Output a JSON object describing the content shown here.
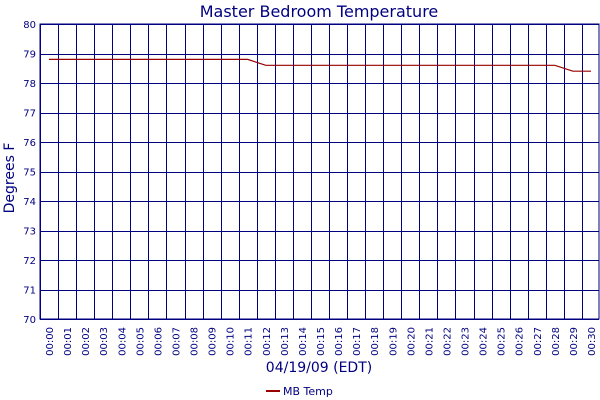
{
  "chart_data": {
    "type": "line",
    "title": "Master Bedroom Temperature",
    "xlabel": "04/19/09 (EDT)",
    "ylabel": "Degrees F",
    "ylim": [
      70,
      80
    ],
    "yticks": [
      "70",
      "71",
      "72",
      "73",
      "74",
      "75",
      "76",
      "77",
      "78",
      "79",
      "80"
    ],
    "x": [
      "00:00",
      "00:01",
      "00:02",
      "00:03",
      "00:04",
      "00:05",
      "00:06",
      "00:07",
      "00:08",
      "00:09",
      "00:10",
      "00:11",
      "00:12",
      "00:13",
      "00:14",
      "00:15",
      "00:16",
      "00:17",
      "00:18",
      "00:19",
      "00:20",
      "00:21",
      "00:22",
      "00:23",
      "00:24",
      "00:25",
      "00:26",
      "00:27",
      "00:28",
      "00:29",
      "00:30"
    ],
    "series": [
      {
        "name": "MB Temp",
        "color": "#990000",
        "values": [
          78.8,
          78.8,
          78.8,
          78.8,
          78.8,
          78.8,
          78.8,
          78.8,
          78.8,
          78.8,
          78.8,
          78.8,
          78.6,
          78.6,
          78.6,
          78.6,
          78.6,
          78.6,
          78.6,
          78.6,
          78.6,
          78.6,
          78.6,
          78.6,
          78.6,
          78.6,
          78.6,
          78.6,
          78.6,
          78.4,
          78.4
        ]
      }
    ],
    "grid": true,
    "legend_position": "bottom"
  },
  "colors": {
    "grid": "#000080",
    "text": "#000080",
    "series": "#990000"
  }
}
